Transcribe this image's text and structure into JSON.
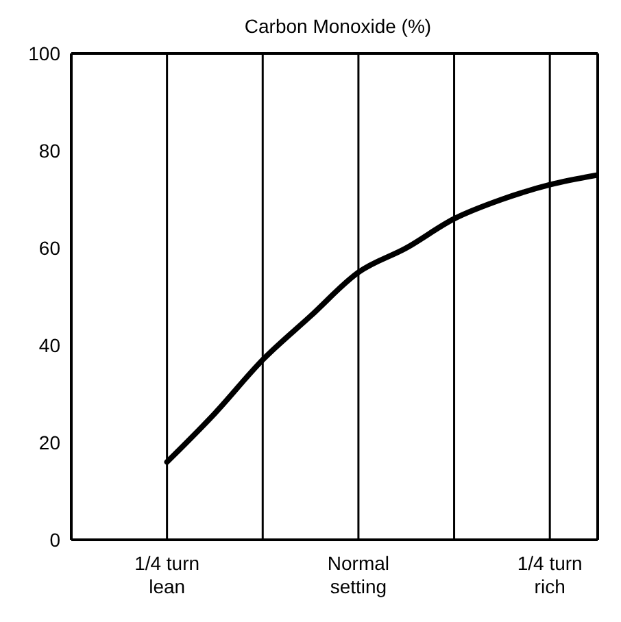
{
  "chart_data": {
    "type": "line",
    "title": "Carbon Monoxide (%)",
    "categories": [
      "1/4 turn\nlean",
      null,
      null,
      null,
      "Normal\nsetting",
      null,
      null,
      null,
      "1/4 turn\nrich",
      null
    ],
    "series": [
      {
        "color": "#000000",
        "values": [
          16,
          26,
          37,
          46,
          55,
          60,
          66,
          70,
          73,
          75
        ]
      }
    ],
    "ylim": [
      0,
      100
    ],
    "yticks": [
      0,
      20,
      40,
      60,
      80,
      100
    ],
    "grid": true,
    "legend": false,
    "marker": "none",
    "line_style": "solid"
  }
}
